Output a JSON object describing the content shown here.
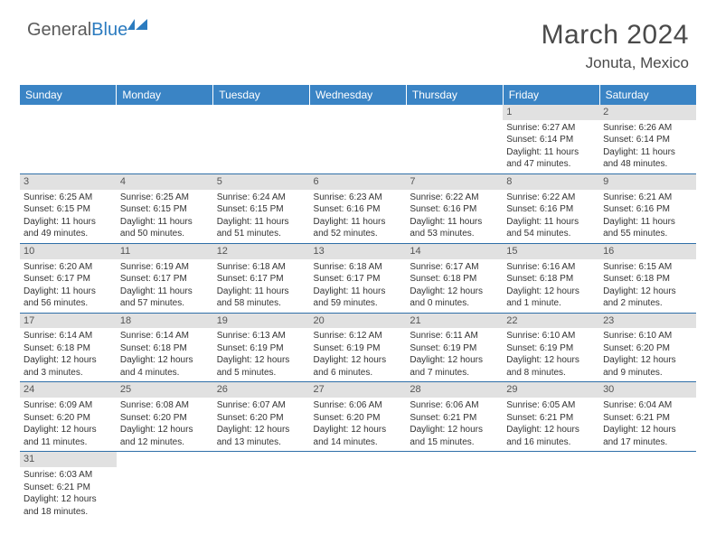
{
  "logo": {
    "word1": "General",
    "word2": "Blue"
  },
  "title": "March 2024",
  "location": "Jonuta, Mexico",
  "colors": {
    "header_bg": "#3a84c5",
    "header_text": "#ffffff",
    "daynum_bg": "#e1e1e1",
    "row_border": "#2f6fa8",
    "logo_gray": "#5a5a5a",
    "logo_blue": "#2b7bbf"
  },
  "weekdays": [
    "Sunday",
    "Monday",
    "Tuesday",
    "Wednesday",
    "Thursday",
    "Friday",
    "Saturday"
  ],
  "weeks": [
    [
      null,
      null,
      null,
      null,
      null,
      {
        "d": "1",
        "sr": "Sunrise: 6:27 AM",
        "ss": "Sunset: 6:14 PM",
        "dl1": "Daylight: 11 hours",
        "dl2": "and 47 minutes."
      },
      {
        "d": "2",
        "sr": "Sunrise: 6:26 AM",
        "ss": "Sunset: 6:14 PM",
        "dl1": "Daylight: 11 hours",
        "dl2": "and 48 minutes."
      }
    ],
    [
      {
        "d": "3",
        "sr": "Sunrise: 6:25 AM",
        "ss": "Sunset: 6:15 PM",
        "dl1": "Daylight: 11 hours",
        "dl2": "and 49 minutes."
      },
      {
        "d": "4",
        "sr": "Sunrise: 6:25 AM",
        "ss": "Sunset: 6:15 PM",
        "dl1": "Daylight: 11 hours",
        "dl2": "and 50 minutes."
      },
      {
        "d": "5",
        "sr": "Sunrise: 6:24 AM",
        "ss": "Sunset: 6:15 PM",
        "dl1": "Daylight: 11 hours",
        "dl2": "and 51 minutes."
      },
      {
        "d": "6",
        "sr": "Sunrise: 6:23 AM",
        "ss": "Sunset: 6:16 PM",
        "dl1": "Daylight: 11 hours",
        "dl2": "and 52 minutes."
      },
      {
        "d": "7",
        "sr": "Sunrise: 6:22 AM",
        "ss": "Sunset: 6:16 PM",
        "dl1": "Daylight: 11 hours",
        "dl2": "and 53 minutes."
      },
      {
        "d": "8",
        "sr": "Sunrise: 6:22 AM",
        "ss": "Sunset: 6:16 PM",
        "dl1": "Daylight: 11 hours",
        "dl2": "and 54 minutes."
      },
      {
        "d": "9",
        "sr": "Sunrise: 6:21 AM",
        "ss": "Sunset: 6:16 PM",
        "dl1": "Daylight: 11 hours",
        "dl2": "and 55 minutes."
      }
    ],
    [
      {
        "d": "10",
        "sr": "Sunrise: 6:20 AM",
        "ss": "Sunset: 6:17 PM",
        "dl1": "Daylight: 11 hours",
        "dl2": "and 56 minutes."
      },
      {
        "d": "11",
        "sr": "Sunrise: 6:19 AM",
        "ss": "Sunset: 6:17 PM",
        "dl1": "Daylight: 11 hours",
        "dl2": "and 57 minutes."
      },
      {
        "d": "12",
        "sr": "Sunrise: 6:18 AM",
        "ss": "Sunset: 6:17 PM",
        "dl1": "Daylight: 11 hours",
        "dl2": "and 58 minutes."
      },
      {
        "d": "13",
        "sr": "Sunrise: 6:18 AM",
        "ss": "Sunset: 6:17 PM",
        "dl1": "Daylight: 11 hours",
        "dl2": "and 59 minutes."
      },
      {
        "d": "14",
        "sr": "Sunrise: 6:17 AM",
        "ss": "Sunset: 6:18 PM",
        "dl1": "Daylight: 12 hours",
        "dl2": "and 0 minutes."
      },
      {
        "d": "15",
        "sr": "Sunrise: 6:16 AM",
        "ss": "Sunset: 6:18 PM",
        "dl1": "Daylight: 12 hours",
        "dl2": "and 1 minute."
      },
      {
        "d": "16",
        "sr": "Sunrise: 6:15 AM",
        "ss": "Sunset: 6:18 PM",
        "dl1": "Daylight: 12 hours",
        "dl2": "and 2 minutes."
      }
    ],
    [
      {
        "d": "17",
        "sr": "Sunrise: 6:14 AM",
        "ss": "Sunset: 6:18 PM",
        "dl1": "Daylight: 12 hours",
        "dl2": "and 3 minutes."
      },
      {
        "d": "18",
        "sr": "Sunrise: 6:14 AM",
        "ss": "Sunset: 6:18 PM",
        "dl1": "Daylight: 12 hours",
        "dl2": "and 4 minutes."
      },
      {
        "d": "19",
        "sr": "Sunrise: 6:13 AM",
        "ss": "Sunset: 6:19 PM",
        "dl1": "Daylight: 12 hours",
        "dl2": "and 5 minutes."
      },
      {
        "d": "20",
        "sr": "Sunrise: 6:12 AM",
        "ss": "Sunset: 6:19 PM",
        "dl1": "Daylight: 12 hours",
        "dl2": "and 6 minutes."
      },
      {
        "d": "21",
        "sr": "Sunrise: 6:11 AM",
        "ss": "Sunset: 6:19 PM",
        "dl1": "Daylight: 12 hours",
        "dl2": "and 7 minutes."
      },
      {
        "d": "22",
        "sr": "Sunrise: 6:10 AM",
        "ss": "Sunset: 6:19 PM",
        "dl1": "Daylight: 12 hours",
        "dl2": "and 8 minutes."
      },
      {
        "d": "23",
        "sr": "Sunrise: 6:10 AM",
        "ss": "Sunset: 6:20 PM",
        "dl1": "Daylight: 12 hours",
        "dl2": "and 9 minutes."
      }
    ],
    [
      {
        "d": "24",
        "sr": "Sunrise: 6:09 AM",
        "ss": "Sunset: 6:20 PM",
        "dl1": "Daylight: 12 hours",
        "dl2": "and 11 minutes."
      },
      {
        "d": "25",
        "sr": "Sunrise: 6:08 AM",
        "ss": "Sunset: 6:20 PM",
        "dl1": "Daylight: 12 hours",
        "dl2": "and 12 minutes."
      },
      {
        "d": "26",
        "sr": "Sunrise: 6:07 AM",
        "ss": "Sunset: 6:20 PM",
        "dl1": "Daylight: 12 hours",
        "dl2": "and 13 minutes."
      },
      {
        "d": "27",
        "sr": "Sunrise: 6:06 AM",
        "ss": "Sunset: 6:20 PM",
        "dl1": "Daylight: 12 hours",
        "dl2": "and 14 minutes."
      },
      {
        "d": "28",
        "sr": "Sunrise: 6:06 AM",
        "ss": "Sunset: 6:21 PM",
        "dl1": "Daylight: 12 hours",
        "dl2": "and 15 minutes."
      },
      {
        "d": "29",
        "sr": "Sunrise: 6:05 AM",
        "ss": "Sunset: 6:21 PM",
        "dl1": "Daylight: 12 hours",
        "dl2": "and 16 minutes."
      },
      {
        "d": "30",
        "sr": "Sunrise: 6:04 AM",
        "ss": "Sunset: 6:21 PM",
        "dl1": "Daylight: 12 hours",
        "dl2": "and 17 minutes."
      }
    ],
    [
      {
        "d": "31",
        "sr": "Sunrise: 6:03 AM",
        "ss": "Sunset: 6:21 PM",
        "dl1": "Daylight: 12 hours",
        "dl2": "and 18 minutes."
      },
      null,
      null,
      null,
      null,
      null,
      null
    ]
  ]
}
